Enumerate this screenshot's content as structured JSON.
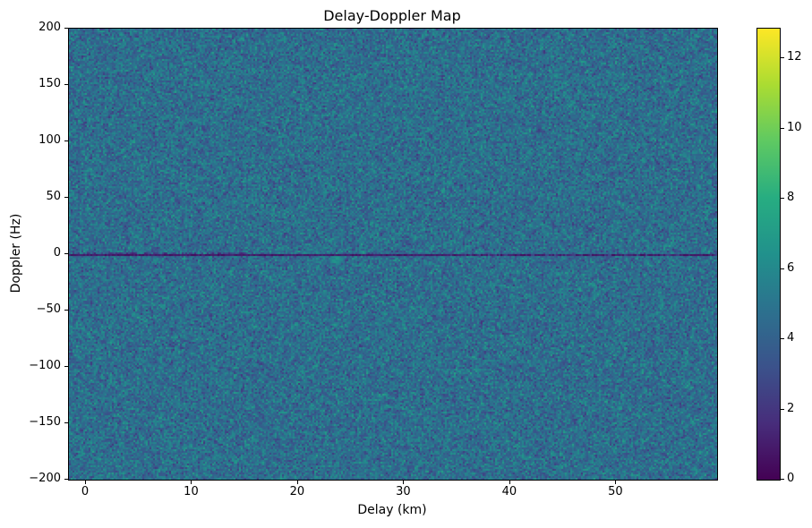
{
  "figure": {
    "title": "Delay-Doppler Map",
    "xlabel": "Delay (km)",
    "ylabel": "Doppler (Hz)"
  },
  "chart_data": {
    "type": "heatmap",
    "title": "Delay-Doppler Map",
    "xlabel": "Delay (km)",
    "ylabel": "Doppler (Hz)",
    "xlim": [
      -1.6,
      59.5
    ],
    "ylim": [
      -200,
      200
    ],
    "x_ticks": [
      0,
      10,
      20,
      30,
      40,
      50
    ],
    "y_ticks": [
      200,
      150,
      100,
      50,
      0,
      -50,
      -100,
      -150,
      -200
    ],
    "grid": false,
    "legend": "none",
    "colormap": "viridis",
    "vmin": 0,
    "vmax": 12.85,
    "colorbar_ticks": [
      0,
      2,
      4,
      6,
      8,
      10,
      12
    ],
    "background_noise": {
      "mean": 4.65,
      "std": 1.05,
      "description": "uniform pixel-scale speckle noise covering entire map, mostly values 3-6 (blue to teal)"
    },
    "features": [
      {
        "name": "zero-doppler-line",
        "doppler_hz": 0,
        "delay_km_range": [
          -1.6,
          59.5
        ],
        "value": 0.6,
        "description": "thin dark purple horizontal stripe across full width at 0 Hz Doppler, slightly thicker/darker on left half"
      },
      {
        "name": "bright-echo",
        "delay_km": 23.5,
        "doppler_hz": -4,
        "value": 8.0,
        "description": "faint small teal-green bright spot just below the zero-Doppler line"
      }
    ]
  },
  "colors": {
    "background": "#ffffff",
    "spine": "#000000",
    "text": "#000000",
    "cmap_low": "#440154",
    "cmap_mid": "#21918c",
    "cmap_high": "#fde725"
  }
}
